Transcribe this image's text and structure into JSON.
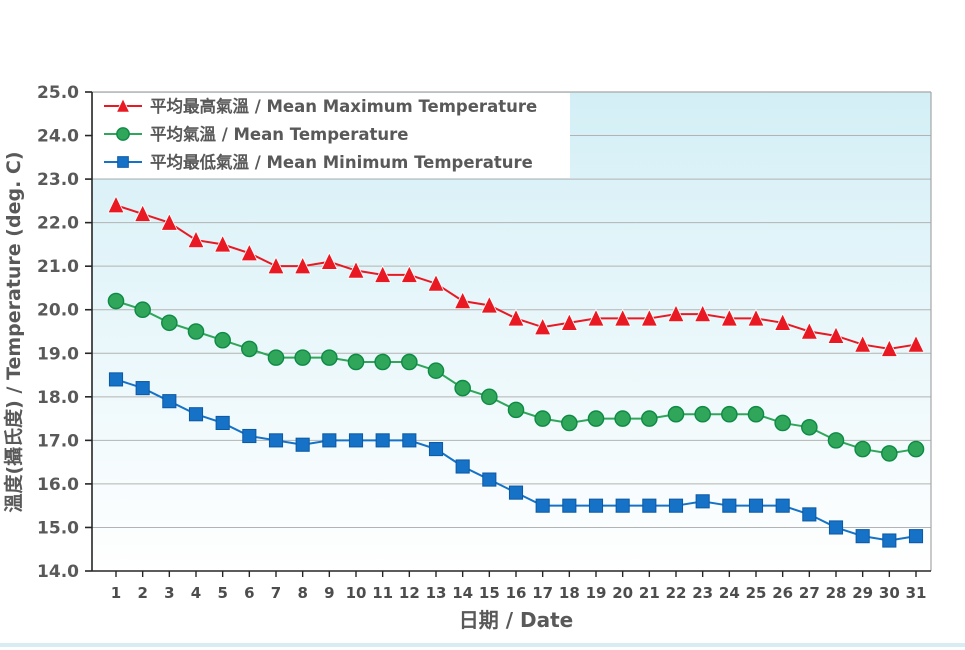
{
  "chart_data": {
    "type": "line",
    "title": "",
    "xlabel": "日期 / Date",
    "ylabel": "溫度(攝氏度) / Temperature (deg. C)",
    "ylim": [
      14.0,
      25.0
    ],
    "ytick_step": 1.0,
    "ytick_decimals": 1,
    "grid": "horizontal",
    "legend_position": "top-left-inside",
    "x": [
      1,
      2,
      3,
      4,
      5,
      6,
      7,
      8,
      9,
      10,
      11,
      12,
      13,
      14,
      15,
      16,
      17,
      18,
      19,
      20,
      21,
      22,
      23,
      24,
      25,
      26,
      27,
      28,
      29,
      30,
      31
    ],
    "series": [
      {
        "name": "平均最高氣溫 / Mean Maximum Temperature",
        "slug": "mean-maximum-temperature",
        "marker": "triangle",
        "line_color": "#e81922",
        "fill_color": "#e81922",
        "edge_color": "#c90d16",
        "values": [
          22.4,
          22.2,
          22.0,
          21.6,
          21.5,
          21.3,
          21.0,
          21.0,
          21.1,
          20.9,
          20.8,
          20.8,
          20.6,
          20.2,
          20.1,
          19.8,
          19.6,
          19.7,
          19.8,
          19.8,
          19.8,
          19.9,
          19.9,
          19.8,
          19.8,
          19.7,
          19.5,
          19.4,
          19.2,
          19.1,
          19.2
        ]
      },
      {
        "name": "平均氣溫 / Mean Temperature",
        "slug": "mean-temperature",
        "marker": "circle",
        "line_color": "#2fa65a",
        "fill_color": "#2fa65a",
        "edge_color": "#0e8a45",
        "values": [
          20.2,
          20.0,
          19.7,
          19.5,
          19.3,
          19.1,
          18.9,
          18.9,
          18.9,
          18.8,
          18.8,
          18.8,
          18.6,
          18.2,
          18.0,
          17.7,
          17.5,
          17.4,
          17.5,
          17.5,
          17.5,
          17.6,
          17.6,
          17.6,
          17.6,
          17.4,
          17.3,
          17.0,
          16.8,
          16.7,
          16.8
        ]
      },
      {
        "name": "平均最低氣溫 / Mean Minimum Temperature",
        "slug": "mean-minimum-temperature",
        "marker": "square",
        "line_color": "#1572c6",
        "fill_color": "#1572c6",
        "edge_color": "#0c59a4",
        "values": [
          18.4,
          18.2,
          17.9,
          17.6,
          17.4,
          17.1,
          17.0,
          16.9,
          17.0,
          17.0,
          17.0,
          17.0,
          16.8,
          16.4,
          16.1,
          15.8,
          15.5,
          15.5,
          15.5,
          15.5,
          15.5,
          15.5,
          15.6,
          15.5,
          15.5,
          15.5,
          15.3,
          15.0,
          14.8,
          14.7,
          14.8
        ]
      }
    ],
    "style": {
      "plot_bg_top": "#d3eff6",
      "plot_bg_bottom": "#ffffff",
      "grid_color": "#b3b3b3",
      "border_color": "#a6a6a6",
      "axis_color": "#262626",
      "text_color": "#595959",
      "legend_bg": "#ffffff"
    }
  }
}
